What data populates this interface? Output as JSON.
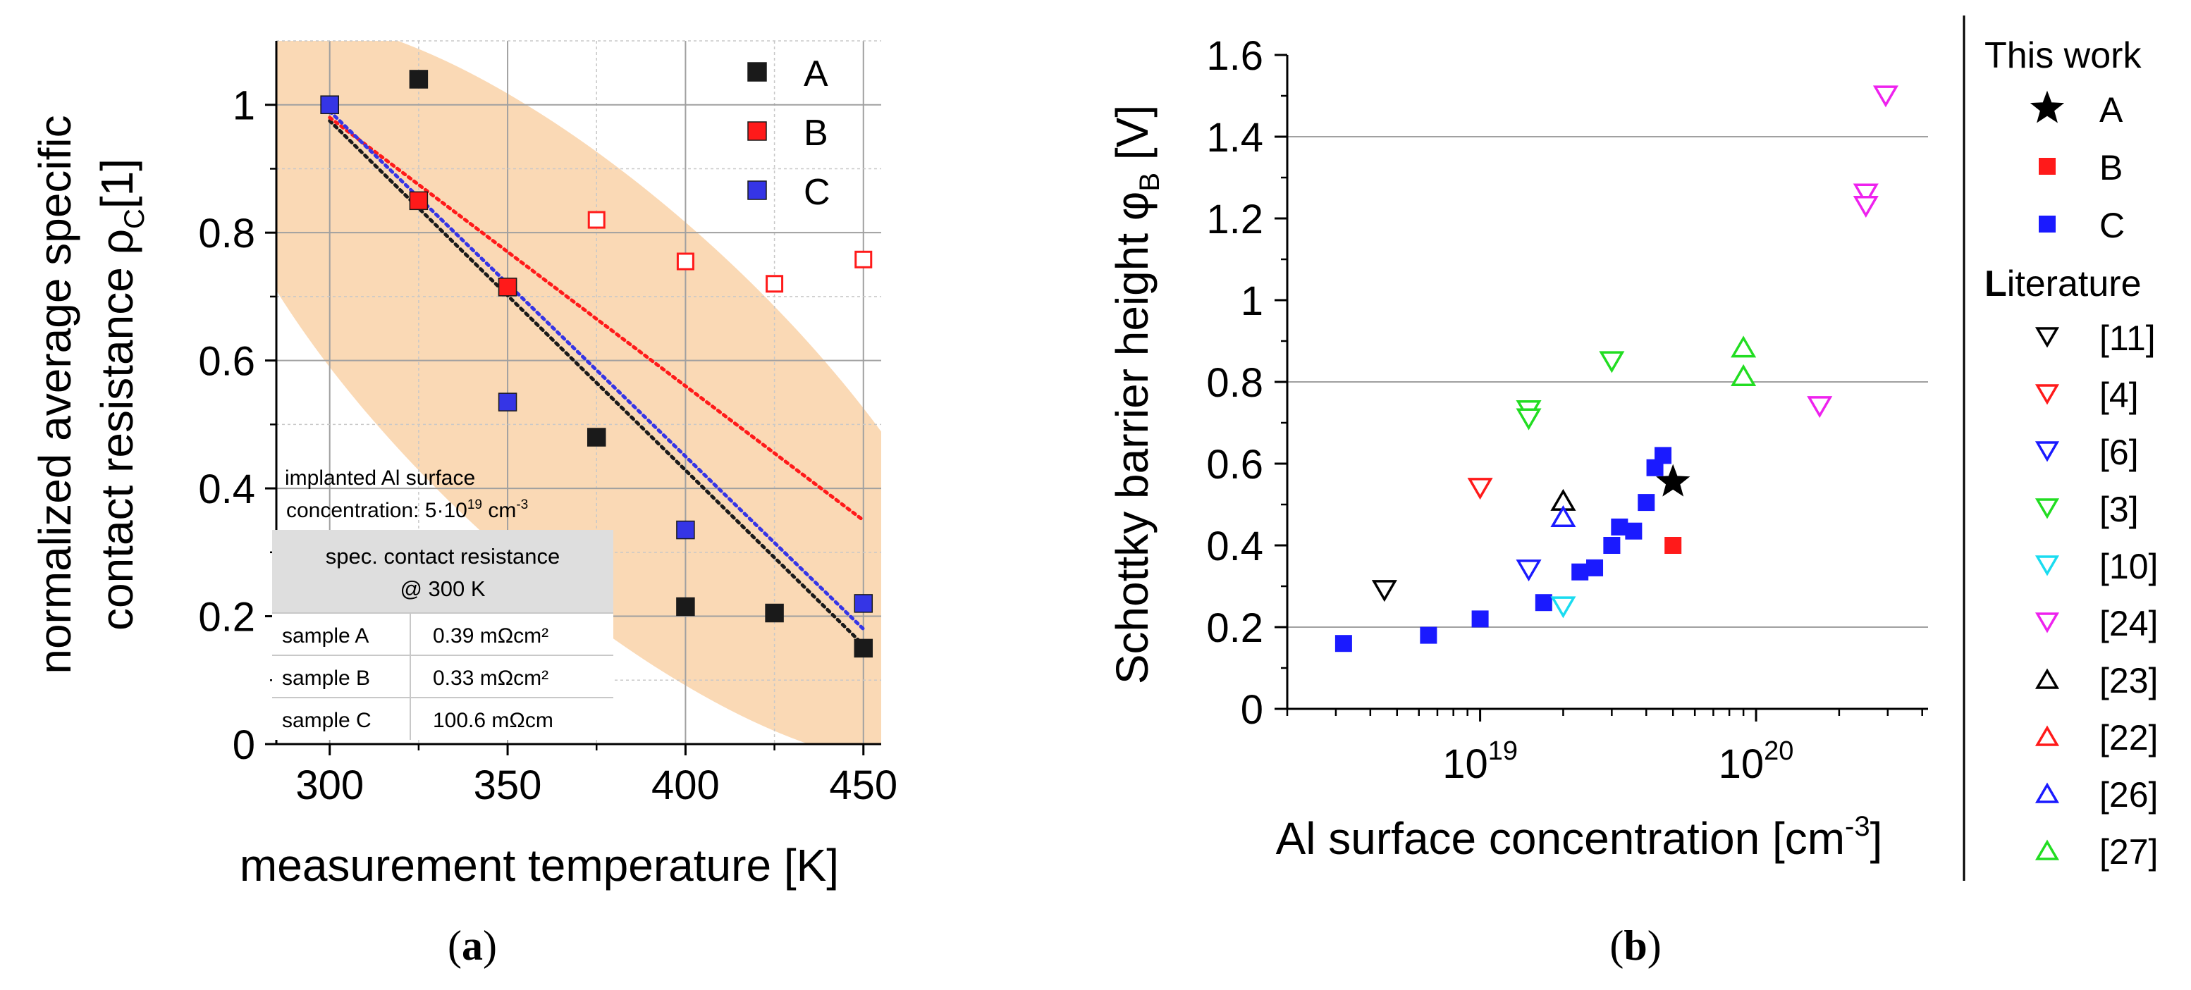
{
  "chart_data": [
    {
      "panel": "a",
      "type": "scatter",
      "caption": "a",
      "xlabel": "measurement temperature [K]",
      "ylabel": {
        "line1": "normalized average specific",
        "line2_main": "contact resistance ρ",
        "line2_sub": "C",
        "line2_unit": "[1]"
      },
      "xlim": [
        285,
        455
      ],
      "ylim": [
        0,
        1.1
      ],
      "xticks": [
        300,
        350,
        400,
        450
      ],
      "xtick_labels": [
        "300",
        "350",
        "400",
        "450"
      ],
      "yticks": [
        0,
        0.2,
        0.4,
        0.6,
        0.8,
        1
      ],
      "ytick_labels": [
        "0",
        "0.2",
        "0.4",
        "0.6",
        "0.8",
        "1"
      ],
      "grid": true,
      "legend": [
        "A",
        "B",
        "C"
      ],
      "legend_position": "top-right",
      "colors": {
        "A": "#1a1a1a",
        "B": "#ff1a1a",
        "C": "#3535e6",
        "highlight": "#fad9b5"
      },
      "series": [
        {
          "name": "A",
          "marker": "filled-square",
          "x": [
            300,
            325,
            350,
            375,
            400,
            425,
            450
          ],
          "y": [
            1.0,
            1.04,
            0.715,
            0.48,
            0.215,
            0.205,
            0.15
          ]
        },
        {
          "name": "B",
          "marker": "filled-square",
          "x": [
            300,
            325,
            350
          ],
          "y": [
            1.0,
            0.85,
            0.715
          ]
        },
        {
          "name": "B (open)",
          "marker": "open-square",
          "x": [
            375,
            400,
            425,
            450
          ],
          "y": [
            0.82,
            0.755,
            0.72,
            0.758
          ]
        },
        {
          "name": "C",
          "marker": "filled-square",
          "x": [
            300,
            350,
            400,
            450
          ],
          "y": [
            1.0,
            0.535,
            0.335,
            0.22
          ]
        }
      ],
      "fit_lines": [
        {
          "series": "A",
          "x": [
            300,
            450
          ],
          "y": [
            0.975,
            0.155
          ]
        },
        {
          "series": "B",
          "x": [
            300,
            450
          ],
          "y": [
            0.98,
            0.35
          ]
        },
        {
          "series": "C",
          "x": [
            300,
            450
          ],
          "y": [
            0.99,
            0.18
          ]
        }
      ],
      "annotation": {
        "line1": "implanted Al surface",
        "line2": "concentration: 5·10",
        "line2_sup": "19",
        "line2_unit": " cm",
        "line2_unit_sup": "-3"
      },
      "table": {
        "header_line1": "spec. contact resistance",
        "header_line2": "@ 300 K",
        "rows": [
          [
            "sample A",
            "0.39 mΩcm²"
          ],
          [
            "sample B",
            "0.33 mΩcm²"
          ],
          [
            "sample C",
            "100.6 mΩcm"
          ]
        ]
      }
    },
    {
      "panel": "b",
      "type": "scatter",
      "caption": "b",
      "xscale": "log",
      "xlabel_main": "Al surface concentration [cm",
      "xlabel_sup": "-3",
      "xlabel_end": "]",
      "ylabel_main": "Schottky barrier height φ",
      "ylabel_sub": "B",
      "ylabel_unit": " [V]",
      "xlim": [
        2e+18,
        4.2e+20
      ],
      "ylim": [
        0,
        1.6
      ],
      "xtick_labels": [
        {
          "value": 1e+19,
          "base": "10",
          "exp": "19"
        },
        {
          "value": 1e+20,
          "base": "10",
          "exp": "20"
        }
      ],
      "yticks": [
        0,
        0.2,
        0.4,
        0.6,
        0.8,
        1,
        1.2,
        1.4,
        1.6
      ],
      "ytick_labels": [
        "0",
        "0.2",
        "0.4",
        "0.6",
        "0.8",
        "1",
        "1.2",
        "1.4",
        "1.6"
      ],
      "grid": true,
      "legend_position": "right-outside",
      "legend": {
        "this_work_title": "This work",
        "literature_title_first": "L",
        "literature_title_rest": "iterature",
        "entries": [
          {
            "label": "A",
            "marker": "star",
            "color": "#000000",
            "group": "this"
          },
          {
            "label": "B",
            "marker": "filled-square",
            "color": "#ff1a1a",
            "group": "this"
          },
          {
            "label": "C",
            "marker": "filled-square",
            "color": "#1a1aff",
            "group": "this"
          },
          {
            "label": "[11]",
            "marker": "open-triangle-down",
            "color": "#000000",
            "group": "lit"
          },
          {
            "label": "[4]",
            "marker": "open-triangle-down",
            "color": "#ff1a1a",
            "group": "lit"
          },
          {
            "label": "[6]",
            "marker": "open-triangle-down",
            "color": "#1a1aff",
            "group": "lit"
          },
          {
            "label": "[3]",
            "marker": "open-triangle-down",
            "color": "#22dd22",
            "group": "lit"
          },
          {
            "label": "[10]",
            "marker": "open-triangle-down",
            "color": "#1adcf0",
            "group": "lit"
          },
          {
            "label": "[24]",
            "marker": "open-triangle-down",
            "color": "#ee22ee",
            "group": "lit"
          },
          {
            "label": "[23]",
            "marker": "open-triangle-up",
            "color": "#000000",
            "group": "lit"
          },
          {
            "label": "[22]",
            "marker": "open-triangle-up",
            "color": "#ff1a1a",
            "group": "lit"
          },
          {
            "label": "[26]",
            "marker": "open-triangle-up",
            "color": "#1a1aff",
            "group": "lit"
          },
          {
            "label": "[27]",
            "marker": "open-triangle-up",
            "color": "#22dd22",
            "group": "lit"
          }
        ]
      },
      "series": [
        {
          "name": "A",
          "marker": "star",
          "color": "#000000",
          "x": [
            5e+19
          ],
          "y": [
            0.555
          ]
        },
        {
          "name": "B",
          "marker": "filled-square",
          "color": "#ff1a1a",
          "x": [
            5e+19
          ],
          "y": [
            0.4
          ]
        },
        {
          "name": "C",
          "marker": "filled-square",
          "color": "#1a1aff",
          "x": [
            3.2e+18,
            6.5e+18,
            1e+19,
            1.7e+19,
            2.3e+19,
            2.6e+19,
            3e+19,
            3.2e+19,
            3.6e+19,
            4e+19,
            4.3e+19,
            4.6e+19
          ],
          "y": [
            0.16,
            0.18,
            0.22,
            0.26,
            0.335,
            0.345,
            0.4,
            0.445,
            0.435,
            0.505,
            0.59,
            0.62
          ]
        },
        {
          "name": "[11]",
          "marker": "open-triangle-down",
          "color": "#000000",
          "x": [
            4.5e+18
          ],
          "y": [
            0.29
          ]
        },
        {
          "name": "[4]",
          "marker": "open-triangle-down",
          "color": "#ff1a1a",
          "x": [
            1e+19
          ],
          "y": [
            0.54
          ]
        },
        {
          "name": "[6]",
          "marker": "open-triangle-down",
          "color": "#1a1aff",
          "x": [
            1.5e+19
          ],
          "y": [
            0.34
          ]
        },
        {
          "name": "[3]",
          "marker": "open-triangle-down",
          "color": "#22dd22",
          "x": [
            1.5e+19,
            1.5e+19,
            3e+19
          ],
          "y": [
            0.73,
            0.71,
            0.85
          ]
        },
        {
          "name": "[10]",
          "marker": "open-triangle-down",
          "color": "#1adcf0",
          "x": [
            2e+19
          ],
          "y": [
            0.25
          ]
        },
        {
          "name": "[24]",
          "marker": "open-triangle-down",
          "color": "#ee22ee",
          "x": [
            1.7e+20,
            2.5e+20,
            2.5e+20,
            2.95e+20
          ],
          "y": [
            0.74,
            1.26,
            1.23,
            1.5
          ]
        },
        {
          "name": "[23]",
          "marker": "open-triangle-up",
          "color": "#000000",
          "x": [
            2e+19
          ],
          "y": [
            0.51
          ]
        },
        {
          "name": "[26]",
          "marker": "open-triangle-up",
          "color": "#1a1aff",
          "x": [
            2e+19
          ],
          "y": [
            0.47
          ]
        },
        {
          "name": "[27]",
          "marker": "open-triangle-up",
          "color": "#22dd22",
          "x": [
            9e+19,
            9e+19
          ],
          "y": [
            0.885,
            0.815
          ]
        }
      ]
    }
  ]
}
